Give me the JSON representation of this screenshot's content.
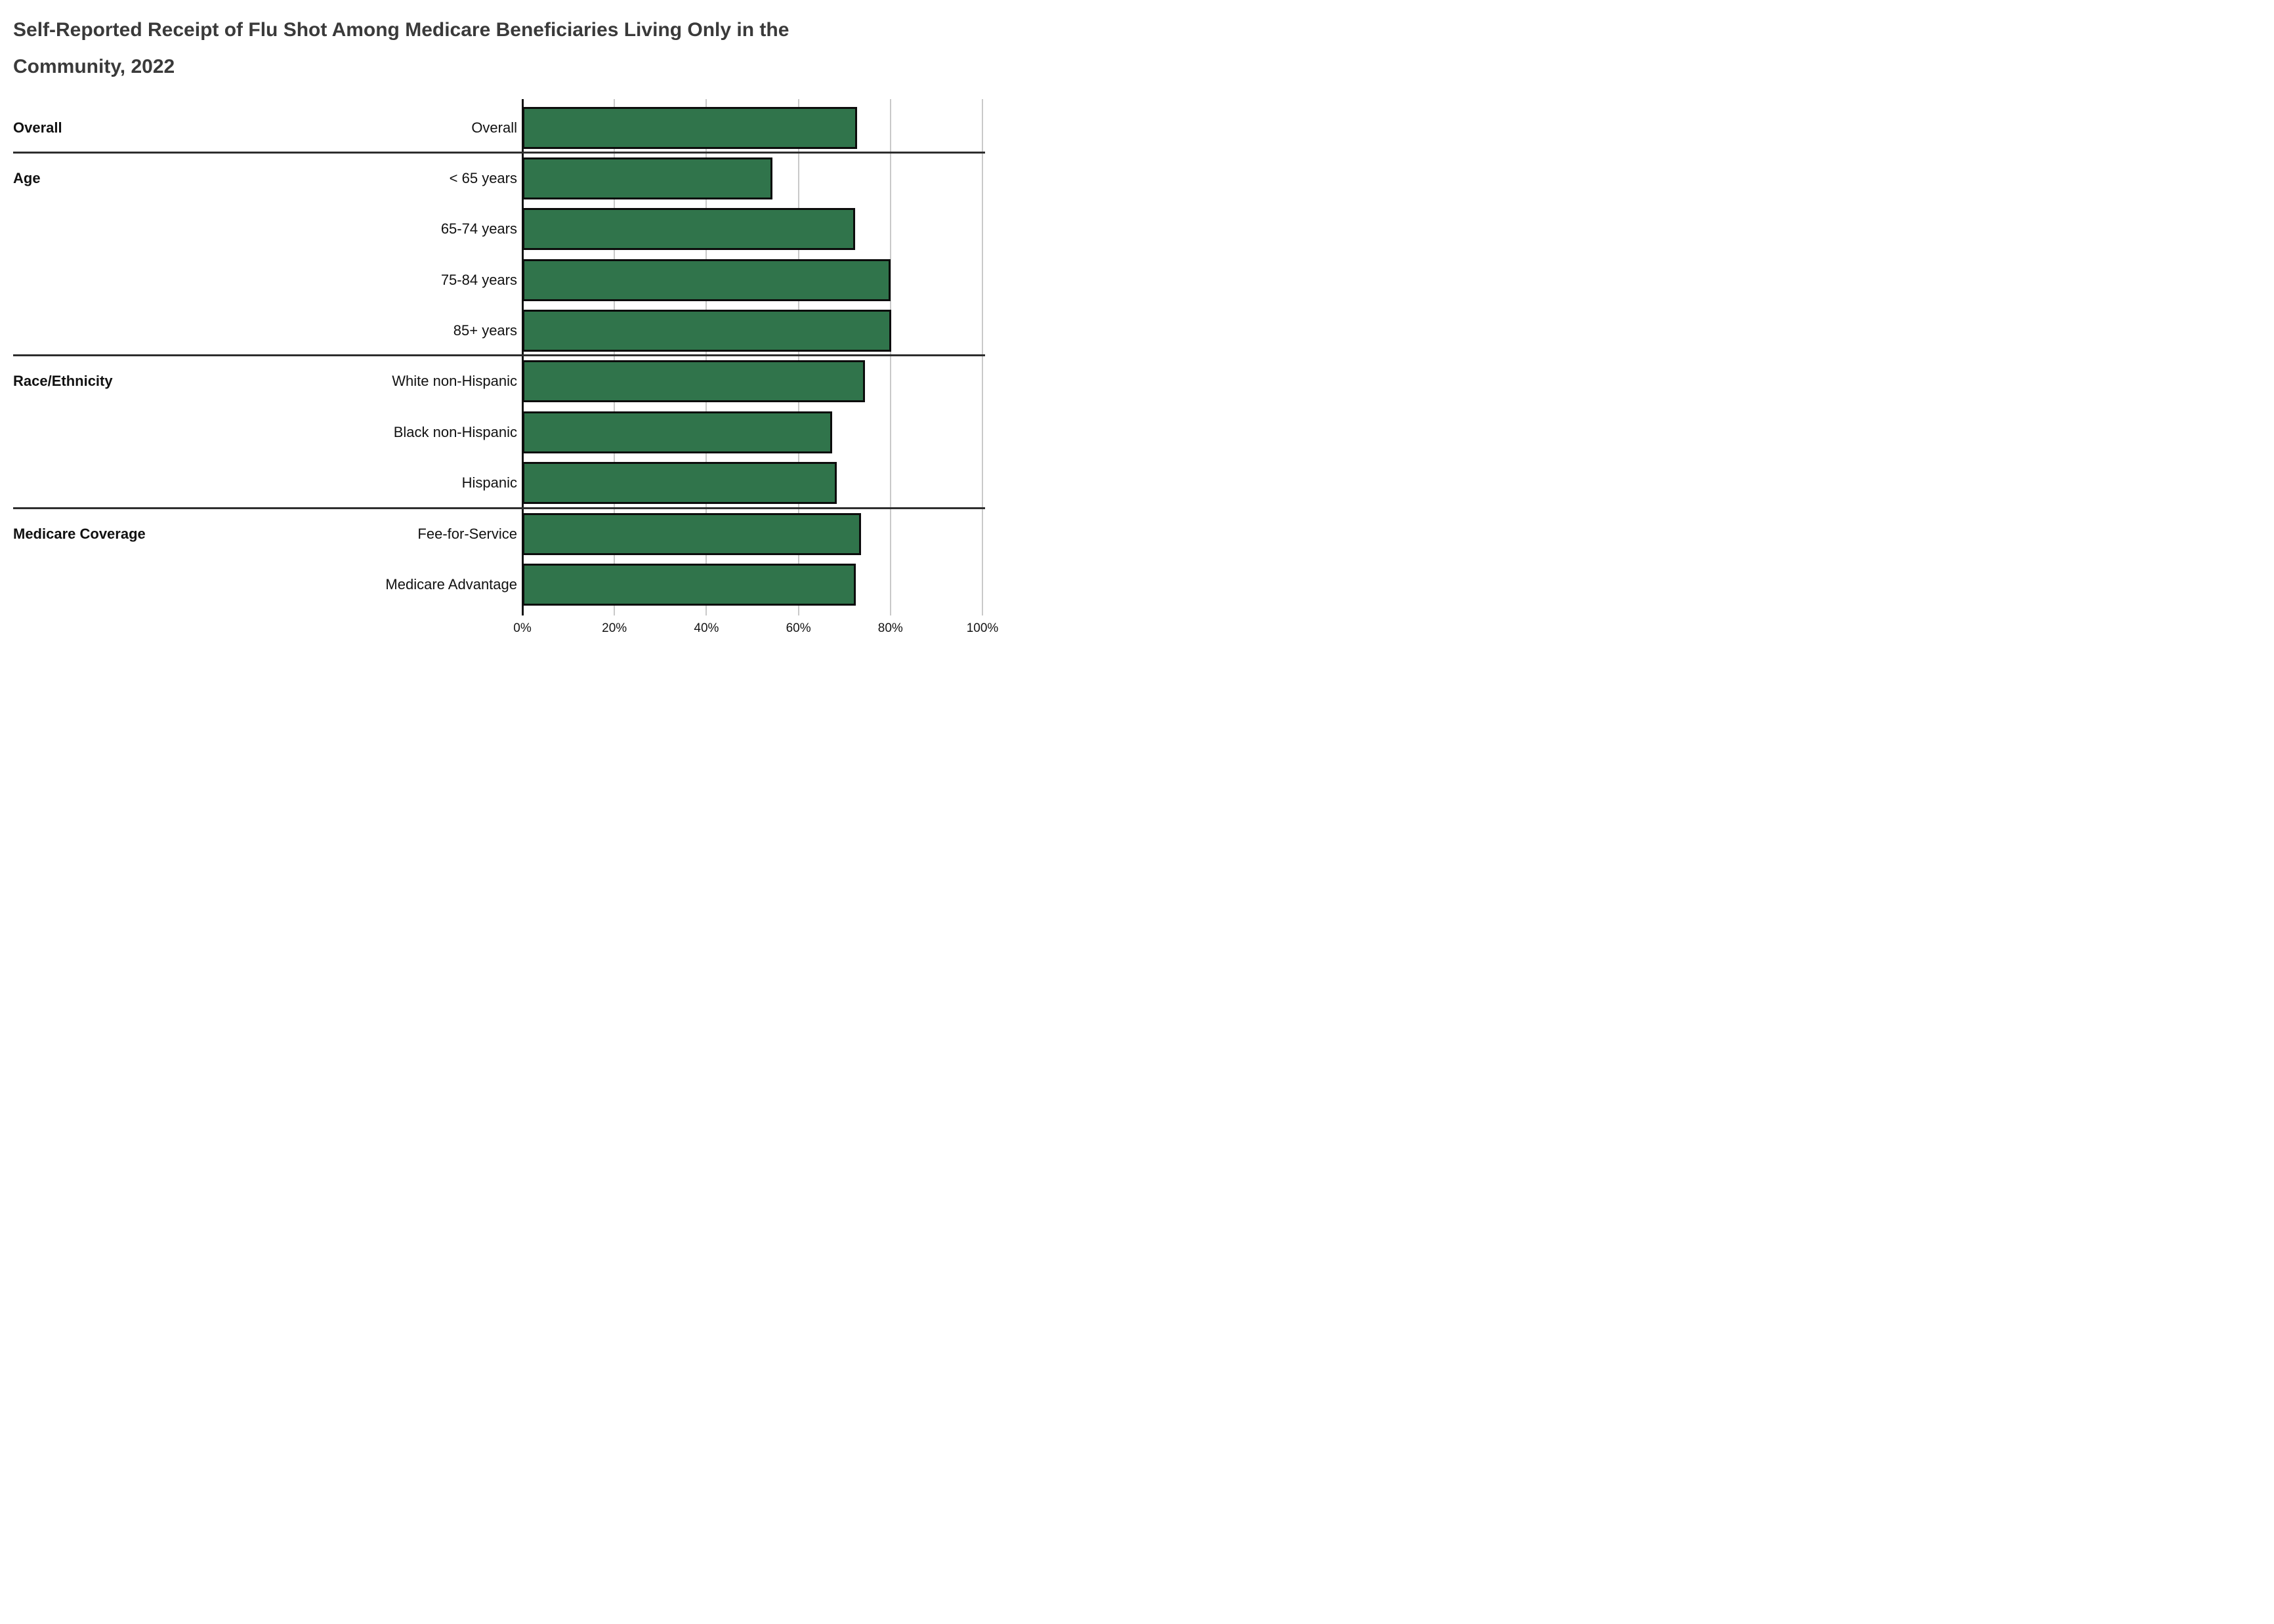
{
  "page": {
    "title_lines": [
      "Self-Reported Receipt of Flu Shot Among Medicare Beneficiaries Living Only in the",
      "Community, 2022"
    ]
  },
  "chart_data": {
    "type": "bar",
    "orientation": "horizontal",
    "title": "Self-Reported Receipt of Flu Shot Among Medicare Beneficiaries Living Only in the Community, 2022",
    "xlabel": "",
    "ylabel": "",
    "unit": "percent",
    "xlim": [
      0,
      100
    ],
    "x_ticks": [
      "0%",
      "20%",
      "40%",
      "60%",
      "80%",
      "100%"
    ],
    "grid": true,
    "legend": false,
    "data_labels": false,
    "colors": {
      "bar_fill": "#30744B",
      "bar_border": "#0c0c0c",
      "gridline": "#c9c9c9",
      "axis_line": "#141414",
      "separator": "#2e2e2e",
      "title_text": "#3a3a3a",
      "label_text": "#111111",
      "background": "#ffffff"
    },
    "groups": [
      {
        "label": "Overall",
        "rows": [
          {
            "category": "Overall",
            "value": 72.8
          }
        ]
      },
      {
        "label": "Age",
        "rows": [
          {
            "category": "< 65 years",
            "value": 54.4
          },
          {
            "category": "65-74 years",
            "value": 72.3
          },
          {
            "category": "75-84 years",
            "value": 80.0
          },
          {
            "category": "85+ years",
            "value": 80.2
          }
        ]
      },
      {
        "label": "Race/Ethnicity",
        "rows": [
          {
            "category": "White non-Hispanic",
            "value": 74.4
          },
          {
            "category": "Black non-Hispanic",
            "value": 67.3
          },
          {
            "category": "Hispanic",
            "value": 68.4
          }
        ]
      },
      {
        "label": "Medicare Coverage",
        "rows": [
          {
            "category": "Fee-for-Service",
            "value": 73.6
          },
          {
            "category": "Medicare Advantage",
            "value": 72.4
          }
        ]
      }
    ]
  }
}
